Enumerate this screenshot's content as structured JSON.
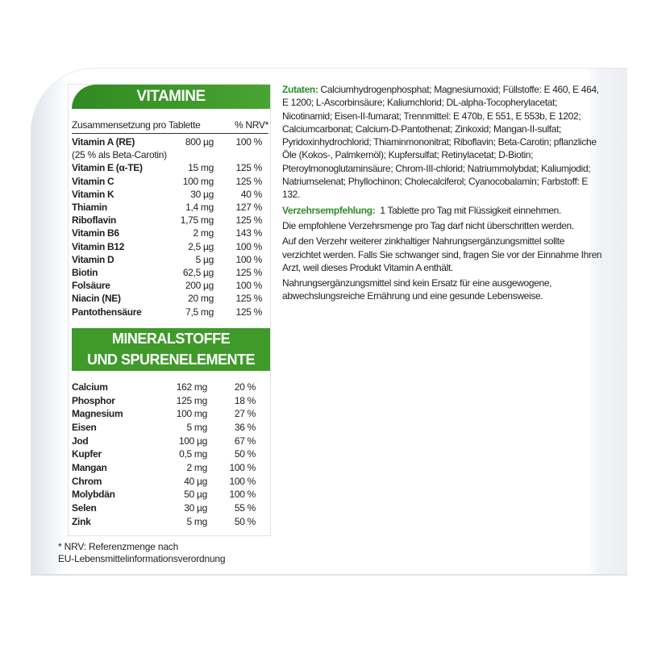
{
  "vitamine": {
    "title": "VITAMINE",
    "col_label": "Zusammensetzung pro Tablette",
    "col_nrv": "% NRV*",
    "rows": [
      {
        "name": "Vitamin A (RE)",
        "amount": "800 µg",
        "nrv": "100 %"
      },
      {
        "name": "(25 % als Beta-Carotin)",
        "amount": "",
        "nrv": ""
      },
      {
        "name": "Vitamin E (α-TE)",
        "amount": "15 mg",
        "nrv": "125 %"
      },
      {
        "name": "Vitamin C",
        "amount": "100 mg",
        "nrv": "125 %"
      },
      {
        "name": "Vitamin K",
        "amount": "30 µg",
        "nrv": "40 %"
      },
      {
        "name": "Thiamin",
        "amount": "1,4 mg",
        "nrv": "127 %"
      },
      {
        "name": "Riboflavin",
        "amount": "1,75 mg",
        "nrv": "125 %"
      },
      {
        "name": "Vitamin B6",
        "amount": "2 mg",
        "nrv": "143 %"
      },
      {
        "name": "Vitamin B12",
        "amount": "2,5 µg",
        "nrv": "100 %"
      },
      {
        "name": "Vitamin D",
        "amount": "5 µg",
        "nrv": "100 %"
      },
      {
        "name": "Biotin",
        "amount": "62,5 µg",
        "nrv": "125 %"
      },
      {
        "name": "Folsäure",
        "amount": "200 µg",
        "nrv": "100 %"
      },
      {
        "name": "Niacin (NE)",
        "amount": "20 mg",
        "nrv": "125 %"
      },
      {
        "name": "Pantothensäure",
        "amount": "7,5 mg",
        "nrv": "125 %"
      }
    ]
  },
  "mineralstoffe": {
    "title_line1": "MINERALSTOFFE",
    "title_line2": "UND SPURENELEMENTE",
    "rows": [
      {
        "name": "Calcium",
        "amount": "162 mg",
        "nrv": "20 %"
      },
      {
        "name": "Phosphor",
        "amount": "125 mg",
        "nrv": "18 %"
      },
      {
        "name": "Magnesium",
        "amount": "100 mg",
        "nrv": "27 %"
      },
      {
        "name": "Eisen",
        "amount": "5 mg",
        "nrv": "36 %"
      },
      {
        "name": "Jod",
        "amount": "100 µg",
        "nrv": "67 %"
      },
      {
        "name": "Kupfer",
        "amount": "0,5 mg",
        "nrv": "50 %"
      },
      {
        "name": "Mangan",
        "amount": "2 mg",
        "nrv": "100 %"
      },
      {
        "name": "Chrom",
        "amount": "40 µg",
        "nrv": "100 %"
      },
      {
        "name": "Molybdän",
        "amount": "50 µg",
        "nrv": "100 %"
      },
      {
        "name": "Selen",
        "amount": "30 µg",
        "nrv": "55 %"
      },
      {
        "name": "Zink",
        "amount": "5 mg",
        "nrv": "50 %"
      }
    ]
  },
  "footnote": {
    "line1": "* NRV: Referenzmenge nach",
    "line2": "EU-Lebensmittelinformationsverordnung"
  },
  "zutaten": {
    "label": "Zutaten:",
    "text": "Calciumhydrogenphosphat; Magnesiumoxid; Füllstoffe: E 460, E 464, E 1200; L-Ascorbinsäure; Kaliumchlorid; DL-alpha-Tocopherylacetat; Nicotinamid; Eisen-II-fumarat; Trennmittel: E 470b, E 551, E 553b, E 1202; Calciumcarbonat; Calcium-D-Pantothenat; Zinkoxid; Mangan-II-sulfat; Pyridoxinhydrochlorid; Thiaminmononitrat; Riboflavin; Beta-Carotin; pflanzliche Öle (Kokos-, Palmkernöl); Kupfersulfat; Retinylacetat; D-Biotin; Pteroylmonoglutaminsäure; Chrom-III-chlorid; Natriummolybdat; Kaliumjodid; Natriumselenat; Phyllochinon; Cholecalciferol; Cyanocobalamin; Farbstoff: E 132."
  },
  "verzehr": {
    "label": "Verzehrsempfehlung:",
    "text": "1 Tablette pro Tag mit Flüssigkeit einnehmen."
  },
  "hinweise": [
    "Die empfohlene Verzehrsmenge pro Tag darf nicht überschritten werden.",
    "Auf den Verzehr weiterer zinkhaltiger Nahrungsergänzungsmittel sollte verzichtet werden. Falls Sie schwanger sind, fragen Sie vor der Einnahme Ihren Arzt, weil dieses Produkt Vitamin A enthält.",
    "Nahrungsergänzungsmittel sind kein Ersatz für eine ausgewogene, abwechslungsreiche Ernährung und eine gesunde Lebensweise."
  ],
  "colors": {
    "accent": "#3f9a2a",
    "label_green": "#2e8b2a"
  }
}
